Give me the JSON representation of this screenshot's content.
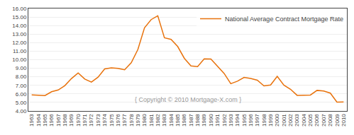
{
  "chart_data": {
    "type": "line",
    "x": [
      1963,
      1964,
      1965,
      1966,
      1967,
      1968,
      1969,
      1970,
      1971,
      1972,
      1973,
      1974,
      1975,
      1976,
      1977,
      1978,
      1979,
      1980,
      1981,
      1982,
      1983,
      1984,
      1985,
      1986,
      1987,
      1988,
      1989,
      1990,
      1991,
      1992,
      1993,
      1994,
      1995,
      1996,
      1997,
      1998,
      1999,
      2000,
      2001,
      2002,
      2003,
      2004,
      2005,
      2006,
      2007,
      2008,
      2009,
      2010
    ],
    "series": [
      {
        "name": "National Average Contract Mortgage Rate",
        "color": "#E8720C",
        "values": [
          5.89,
          5.83,
          5.81,
          6.25,
          6.46,
          6.97,
          7.8,
          8.45,
          7.74,
          7.38,
          7.96,
          8.92,
          9.05,
          8.99,
          8.82,
          9.64,
          11.2,
          13.74,
          14.7,
          15.14,
          12.57,
          12.38,
          11.55,
          10.17,
          9.28,
          9.19,
          10.11,
          10.08,
          9.25,
          8.39,
          7.2,
          7.49,
          7.93,
          7.81,
          7.6,
          6.94,
          7.04,
          8.05,
          7.03,
          6.54,
          5.83,
          5.84,
          5.87,
          6.41,
          6.34,
          6.09,
          5.04,
          5.05
        ]
      }
    ],
    "xlim": [
      1962.5,
      2010.5
    ],
    "xticks": [
      1963,
      1964,
      1965,
      1966,
      1967,
      1968,
      1969,
      1970,
      1971,
      1972,
      1973,
      1974,
      1975,
      1976,
      1977,
      1978,
      1979,
      1980,
      1981,
      1982,
      1983,
      1984,
      1985,
      1986,
      1987,
      1988,
      1989,
      1990,
      1991,
      1992,
      1993,
      1994,
      1995,
      1996,
      1997,
      1998,
      1999,
      2000,
      2001,
      2002,
      2003,
      2004,
      2005,
      2006,
      2007,
      2008,
      2009,
      2010
    ],
    "ylim": [
      4.0,
      16.0
    ],
    "yticks": [
      {
        "value": 4.0,
        "label": "4.00"
      },
      {
        "value": 5.0,
        "label": "5.00"
      },
      {
        "value": 6.0,
        "label": "6.00"
      },
      {
        "value": 7.0,
        "label": "7.00"
      },
      {
        "value": 8.0,
        "label": "8.00"
      },
      {
        "value": 9.0,
        "label": "9.00"
      },
      {
        "value": 10.0,
        "label": "10.00"
      },
      {
        "value": 11.0,
        "label": "11.00"
      },
      {
        "value": 12.0,
        "label": "12.00"
      },
      {
        "value": 13.0,
        "label": "13.00"
      },
      {
        "value": 14.0,
        "label": "14.00"
      },
      {
        "value": 15.0,
        "label": "15.00"
      },
      {
        "value": 16.0,
        "label": "16.00"
      }
    ],
    "grid": "y",
    "legend": "upper right",
    "annotations": [
      "{ Copyright © 2010 Mortgage-X.com }"
    ]
  }
}
